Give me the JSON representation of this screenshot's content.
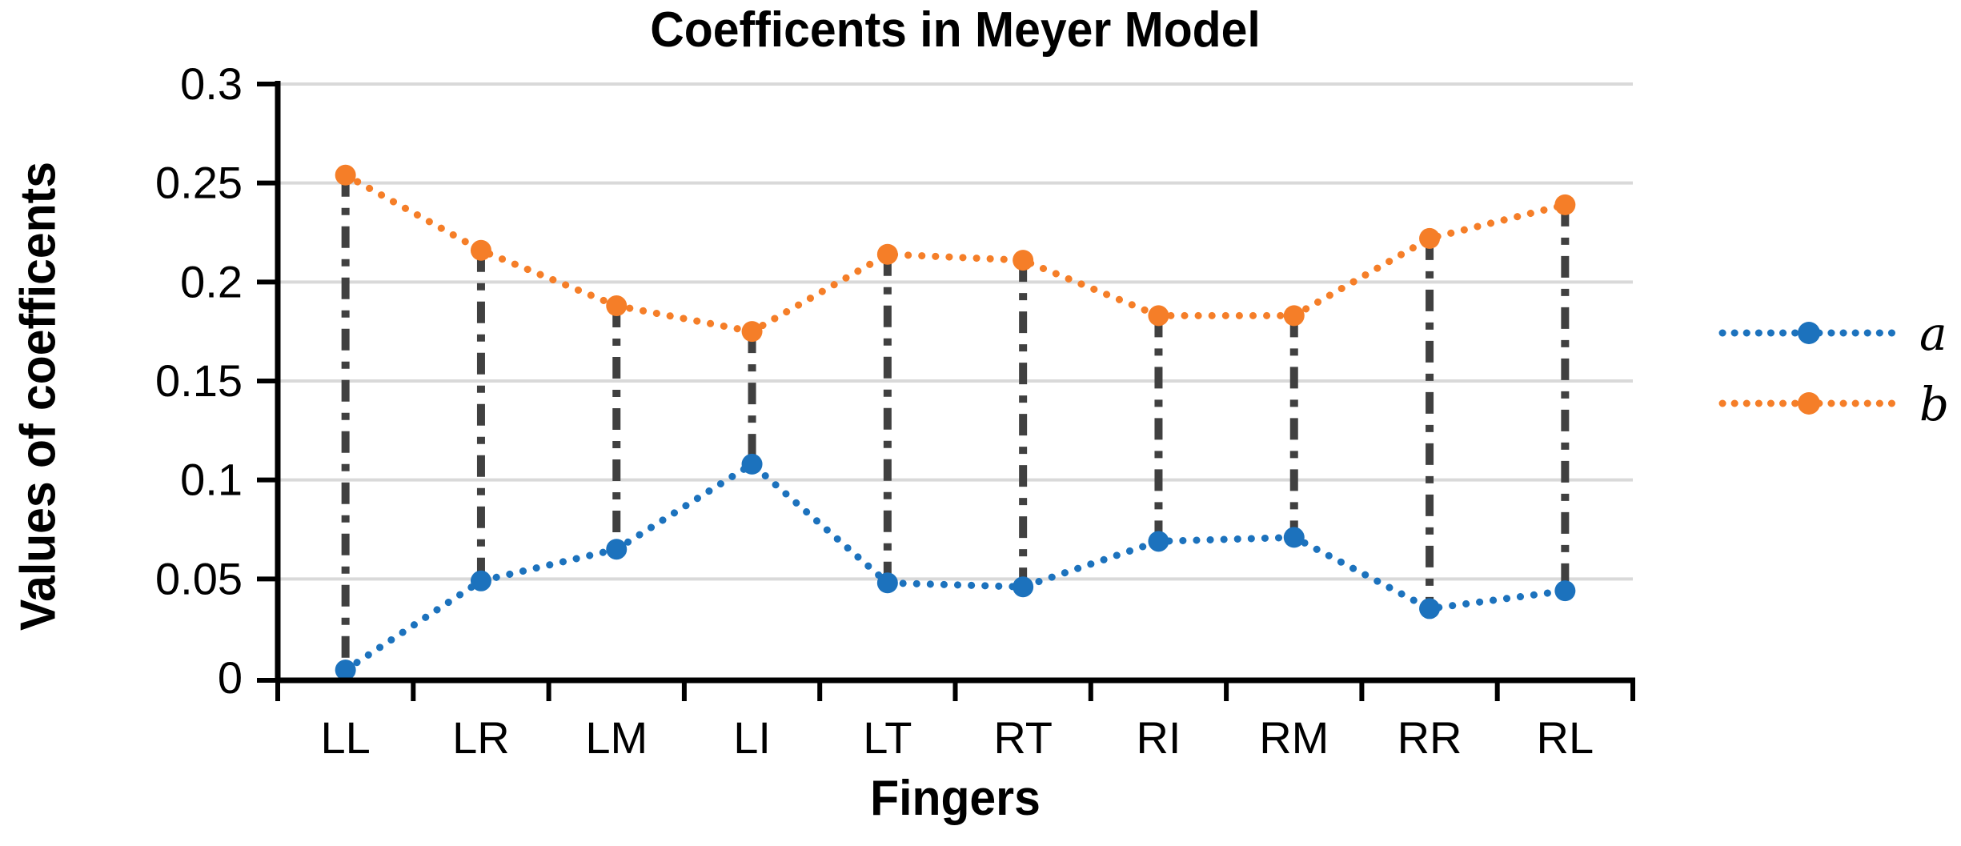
{
  "chart_data": {
    "type": "line",
    "title": "Coefficents in Meyer Model",
    "xlabel": "Fingers",
    "ylabel": "Values of coefficents",
    "categories": [
      "LL",
      "LR",
      "LM",
      "LI",
      "LT",
      "RT",
      "RI",
      "RM",
      "RR",
      "RL"
    ],
    "series": [
      {
        "name": "a",
        "color": "#1C72BD",
        "values": [
          0.004,
          0.049,
          0.065,
          0.108,
          0.048,
          0.046,
          0.069,
          0.071,
          0.035,
          0.044
        ]
      },
      {
        "name": "b",
        "color": "#F57E28",
        "values": [
          0.254,
          0.216,
          0.188,
          0.175,
          0.214,
          0.211,
          0.183,
          0.183,
          0.222,
          0.239
        ]
      }
    ],
    "ylim": [
      0,
      0.3
    ],
    "y_tick_values": [
      0,
      0.05,
      0.1,
      0.15,
      0.2,
      0.25,
      0.3
    ],
    "y_tick_labels": [
      "0",
      "0.05",
      "0.1",
      "0.15",
      "0.2",
      "0.25",
      "0.3"
    ],
    "grid": "horizontal",
    "grid_color": "#D9D9D9",
    "axis_color": "#000000",
    "line_style": "dotted",
    "high_low_lines": true,
    "high_low_color": "#404040",
    "legend_position": "right",
    "legend_labels": [
      "a",
      "b"
    ]
  }
}
